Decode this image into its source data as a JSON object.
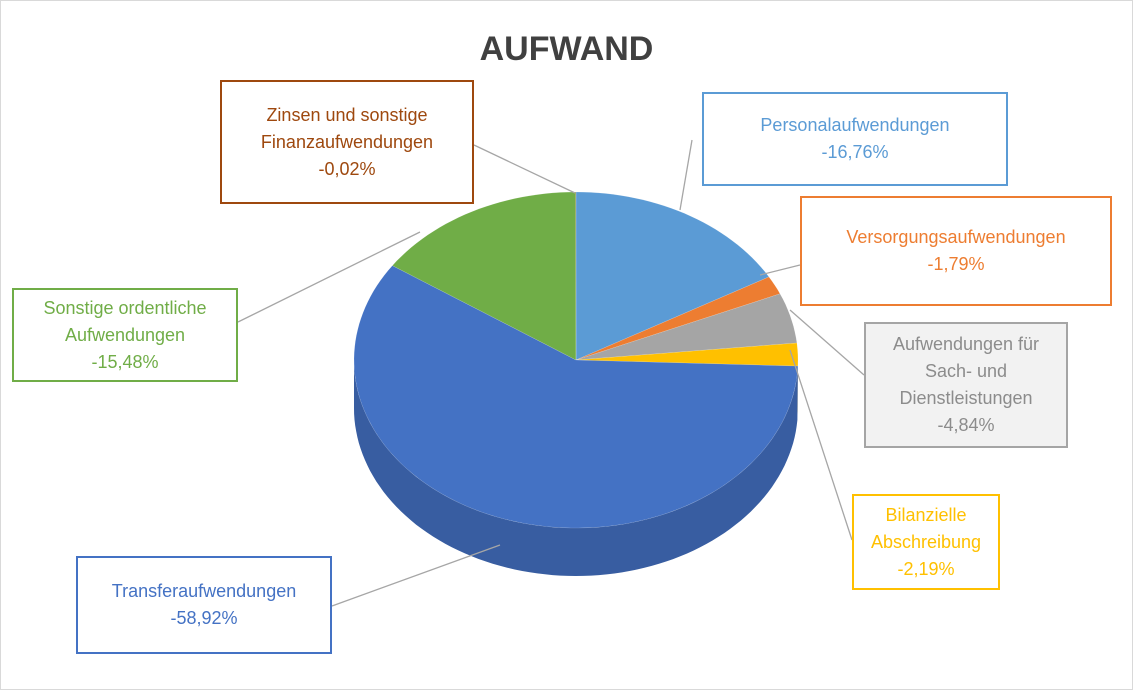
{
  "chart_data": {
    "type": "pie",
    "title": "AUFWAND",
    "categories": [
      "Personalaufwendungen",
      "Versorgungsaufwendungen",
      "Aufwendungen für Sach- und Dienstleistungen",
      "Bilanzielle Abschreibung",
      "Transferaufwendungen",
      "Sonstige ordentliche Aufwendungen",
      "Zinsen und sonstige Finanzaufwendungen"
    ],
    "values": [
      -16.76,
      -1.79,
      -4.84,
      -2.19,
      -58.92,
      -15.48,
      -0.02
    ],
    "value_labels": [
      "-16,76%",
      "-1,79%",
      "-4,84%",
      "-2,19%",
      "-58,92%",
      "-15,48%",
      "-0,02%"
    ],
    "colors": [
      "#5b9bd5",
      "#ed7d31",
      "#a5a5a5",
      "#ffc000",
      "#4472c4",
      "#70ad47",
      "#9e480e"
    ]
  }
}
